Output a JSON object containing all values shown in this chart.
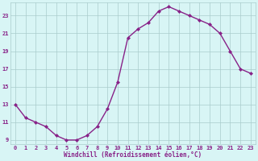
{
  "x": [
    0,
    1,
    2,
    3,
    4,
    5,
    6,
    7,
    8,
    9,
    10,
    11,
    12,
    13,
    14,
    15,
    16,
    17,
    18,
    19,
    20,
    21,
    22,
    23
  ],
  "y": [
    13.0,
    11.5,
    11.0,
    10.5,
    9.5,
    9.0,
    9.0,
    9.5,
    10.5,
    12.5,
    15.5,
    20.5,
    21.5,
    22.2,
    23.5,
    24.0,
    23.5,
    23.0,
    22.5,
    22.0,
    21.0,
    19.0,
    17.0,
    16.5
  ],
  "xlabel": "Windchill (Refroidissement éolien,°C)",
  "xticks": [
    0,
    1,
    2,
    3,
    4,
    5,
    6,
    7,
    8,
    9,
    10,
    11,
    12,
    13,
    14,
    15,
    16,
    17,
    18,
    19,
    20,
    21,
    22,
    23
  ],
  "yticks": [
    9,
    11,
    13,
    15,
    17,
    19,
    21,
    23
  ],
  "ylim": [
    8.5,
    24.5
  ],
  "xlim": [
    -0.5,
    23.5
  ],
  "line_color": "#882288",
  "marker": "D",
  "marker_size": 2.0,
  "bg_color": "#d8f5f5",
  "grid_color": "#aacccc",
  "tick_label_color": "#882288",
  "xlabel_color": "#882288",
  "line_width": 1.0,
  "tick_fontsize": 5.0,
  "xlabel_fontsize": 5.5
}
